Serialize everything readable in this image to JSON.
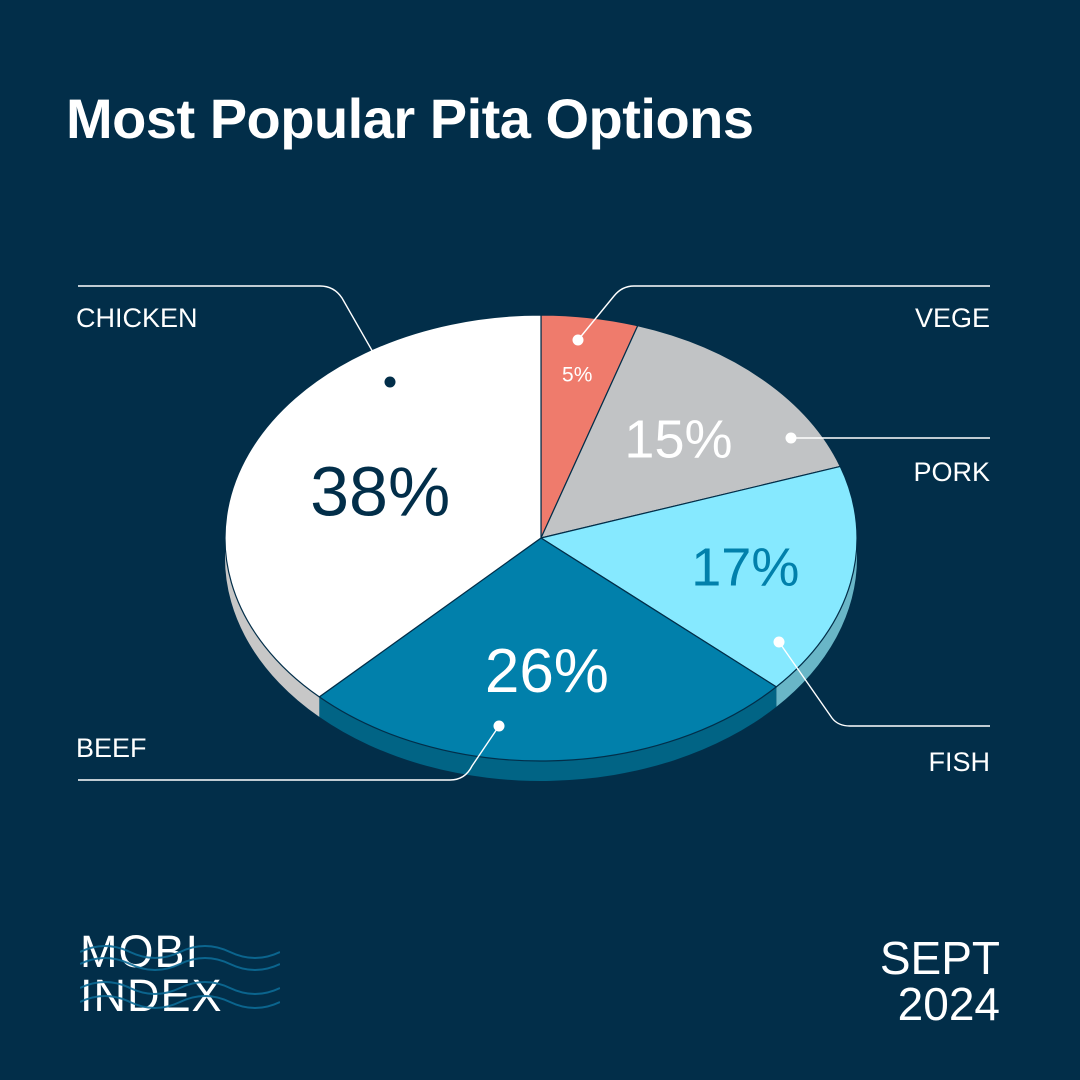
{
  "chart_data": {
    "type": "pie",
    "title": "Most Popular Pita Options",
    "slices": [
      {
        "label": "VEGE",
        "value": 5,
        "value_label": "5%",
        "color": "#ef7b6c"
      },
      {
        "label": "PORK",
        "value": 15,
        "value_label": "15%",
        "color": "#c1c3c5"
      },
      {
        "label": "FISH",
        "value": 17,
        "value_label": "17%",
        "color": "#86e9ff"
      },
      {
        "label": "BEEF",
        "value": 26,
        "value_label": "26%",
        "color": "#0180ab"
      },
      {
        "label": "CHICKEN",
        "value": 38,
        "value_label": "38%",
        "color": "#ffffff"
      }
    ]
  },
  "colors": {
    "background": "#022e49",
    "label_dark": "#022e49",
    "label_light": "#ffffff",
    "fish_label": "#0180ab"
  },
  "branding": {
    "logo_line1": "MOBI",
    "logo_line2": "INDEX",
    "date_line1": "SEPT",
    "date_line2": "2024"
  }
}
